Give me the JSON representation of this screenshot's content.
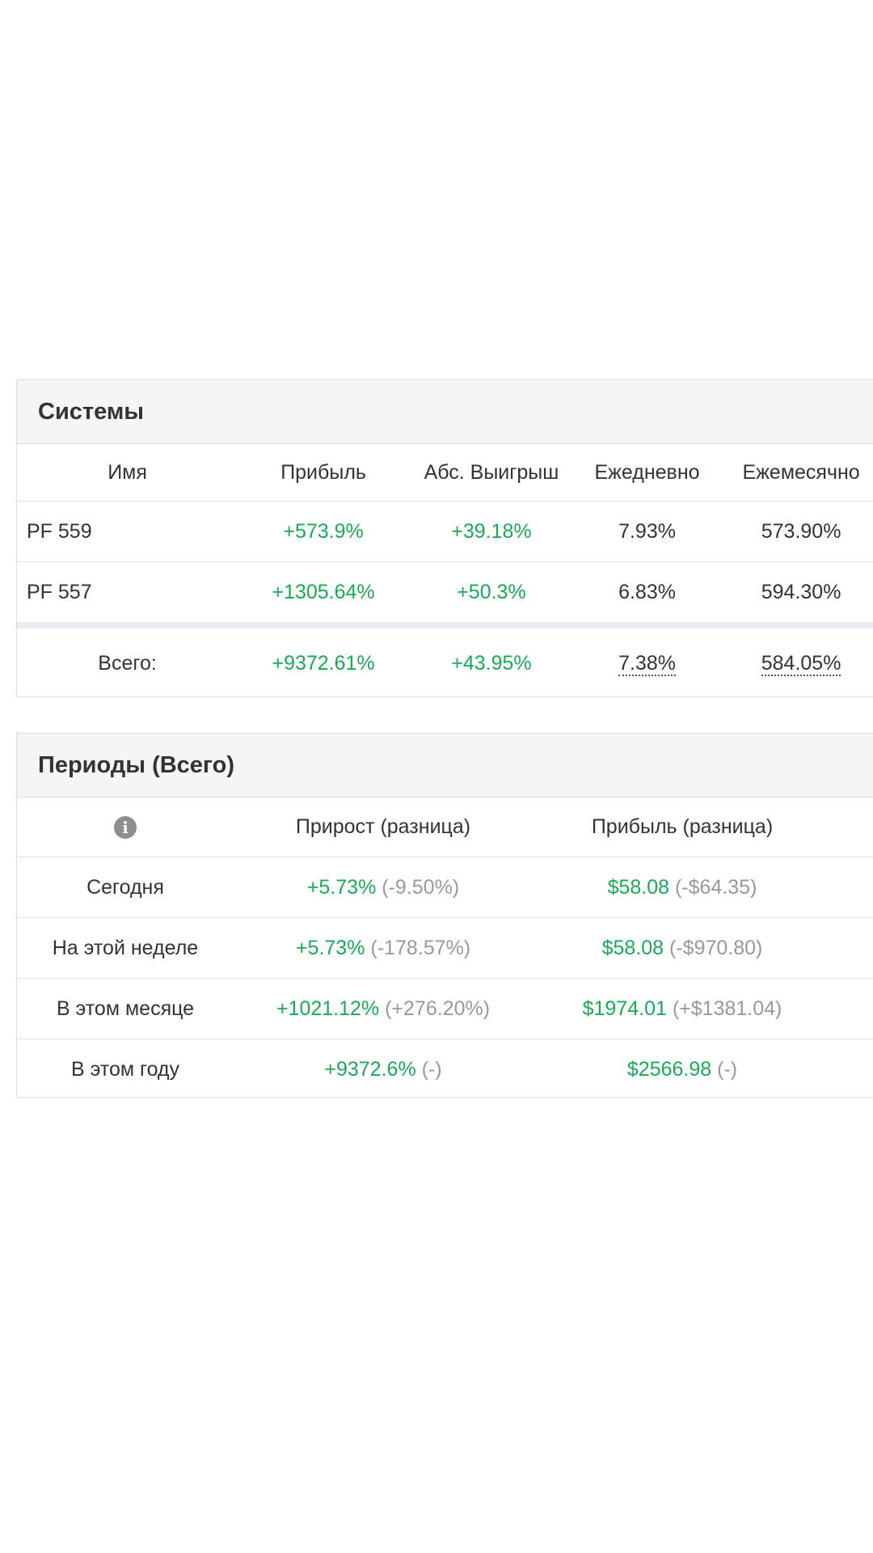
{
  "systems": {
    "title": "Системы",
    "columns": [
      "Имя",
      "Прибыль",
      "Абс. Выигрыш",
      "Ежедневно",
      "Ежемесячно"
    ],
    "rows": [
      {
        "name": "PF 559",
        "profit": "+573.9%",
        "abs_gain": "+39.18%",
        "daily": "7.93%",
        "monthly": "573.90%"
      },
      {
        "name": "PF 557",
        "profit": "+1305.64%",
        "abs_gain": "+50.3%",
        "daily": "6.83%",
        "monthly": "594.30%"
      }
    ],
    "total": {
      "label": "Всего:",
      "profit": "+9372.61%",
      "abs_gain": "+43.95%",
      "daily": "7.38%",
      "monthly": "584.05%"
    }
  },
  "periods": {
    "title": "Периоды (Всего)",
    "info_icon": "info-icon",
    "columns": [
      "Прирост (разница)",
      "Прибыль (разница)"
    ],
    "rows": [
      {
        "label": "Сегодня",
        "growth": "+5.73%",
        "growth_diff": "(-9.50%)",
        "profit": "$58.08",
        "profit_diff": "(-$64.35)"
      },
      {
        "label": "На этой неделе",
        "growth": "+5.73%",
        "growth_diff": "(-178.57%)",
        "profit": "$58.08",
        "profit_diff": "(-$970.80)"
      },
      {
        "label": "В этом месяце",
        "growth": "+1021.12%",
        "growth_diff": "(+276.20%)",
        "profit": "$1974.01",
        "profit_diff": "(+$1381.04)"
      },
      {
        "label": "В этом году",
        "growth": "+9372.6%",
        "growth_diff": "(-)",
        "profit": "$2566.98",
        "profit_diff": "(-)"
      }
    ]
  },
  "colors": {
    "positive": "#1aaa55",
    "muted": "#999999",
    "header_bg": "#f5f5f5",
    "border": "#dddddd"
  }
}
